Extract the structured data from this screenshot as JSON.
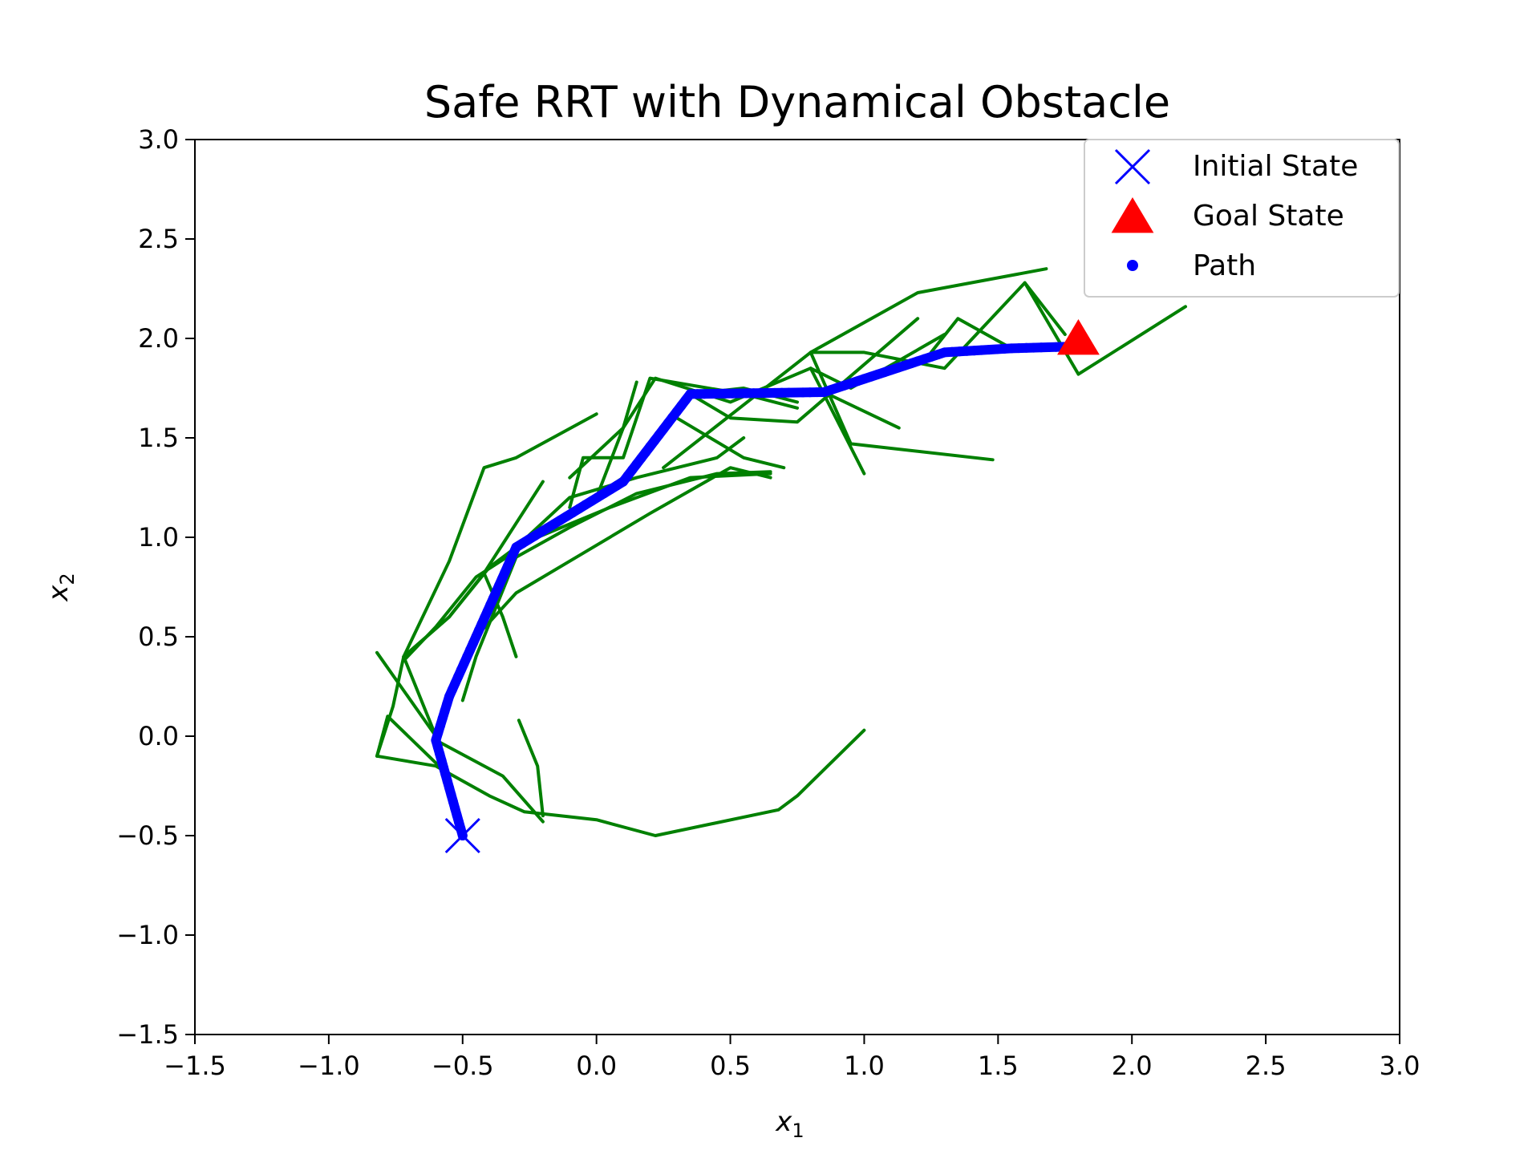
{
  "chart_data": {
    "type": "line",
    "title": "Safe RRT with Dynamical Obstacle",
    "xlabel": "x",
    "xlabel_sub": "1",
    "ylabel": "x",
    "ylabel_sub": "2",
    "xlim": [
      -1.5,
      3.0
    ],
    "ylim": [
      -1.5,
      3.0
    ],
    "xticks": [
      -1.5,
      -1.0,
      -0.5,
      0.0,
      0.5,
      1.0,
      1.5,
      2.0,
      2.5,
      3.0
    ],
    "xtick_labels": [
      "−1.5",
      "−1.0",
      "−0.5",
      "0.0",
      "0.5",
      "1.0",
      "1.5",
      "2.0",
      "2.5",
      "3.0"
    ],
    "yticks": [
      -1.5,
      -1.0,
      -0.5,
      0.0,
      0.5,
      1.0,
      1.5,
      2.0,
      2.5,
      3.0
    ],
    "ytick_labels": [
      "−1.5",
      "−1.0",
      "−0.5",
      "0.0",
      "0.5",
      "1.0",
      "1.5",
      "2.0",
      "2.5",
      "3.0"
    ],
    "grid": false,
    "legend_position": "top-right",
    "legend": [
      {
        "label": "Initial State",
        "marker": "x",
        "color": "#0000ff"
      },
      {
        "label": "Goal State",
        "marker": "triangle",
        "color": "#ff0000"
      },
      {
        "label": "Path",
        "marker": "dot",
        "color": "#0000ff"
      }
    ],
    "tree_color": "#008000",
    "path_color": "#0000ff",
    "initial_state": [
      -0.5,
      -0.5
    ],
    "goal_state": [
      1.8,
      2.0
    ],
    "tree_branches": [
      [
        [
          -0.5,
          -0.5
        ],
        [
          -0.6,
          0.0
        ],
        [
          -0.45,
          0.5
        ],
        [
          -0.3,
          0.95
        ],
        [
          0.1,
          1.3
        ],
        [
          0.35,
          1.72
        ],
        [
          0.85,
          1.73
        ],
        [
          1.3,
          1.93
        ],
        [
          1.55,
          1.95
        ],
        [
          1.8,
          1.95
        ]
      ],
      [
        [
          -0.5,
          -0.5
        ],
        [
          -0.55,
          -0.2
        ],
        [
          -0.78,
          0.1
        ],
        [
          -0.82,
          -0.1
        ]
      ],
      [
        [
          -0.82,
          -0.1
        ],
        [
          -0.76,
          0.15
        ],
        [
          -0.72,
          0.4
        ],
        [
          -0.55,
          0.6
        ],
        [
          -0.4,
          0.85
        ],
        [
          -0.2,
          1.05
        ]
      ],
      [
        [
          -0.82,
          -0.1
        ],
        [
          -0.6,
          -0.15
        ],
        [
          -0.4,
          -0.3
        ],
        [
          -0.27,
          -0.38
        ],
        [
          0.0,
          -0.42
        ],
        [
          0.22,
          -0.5
        ],
        [
          0.68,
          -0.37
        ],
        [
          0.75,
          -0.3
        ],
        [
          1.0,
          0.03
        ]
      ],
      [
        [
          -0.6,
          -0.02
        ],
        [
          -0.35,
          -0.2
        ],
        [
          -0.2,
          -0.43
        ]
      ],
      [
        [
          -0.82,
          0.42
        ],
        [
          -0.6,
          0.0
        ]
      ],
      [
        [
          -0.29,
          0.08
        ],
        [
          -0.22,
          -0.15
        ],
        [
          -0.2,
          -0.4
        ]
      ],
      [
        [
          -0.6,
          0.0
        ],
        [
          -0.72,
          0.4
        ],
        [
          -0.55,
          0.88
        ],
        [
          -0.42,
          1.35
        ],
        [
          -0.3,
          1.4
        ],
        [
          0.0,
          1.62
        ]
      ],
      [
        [
          -0.72,
          0.4
        ],
        [
          -0.55,
          0.6
        ],
        [
          -0.42,
          0.82
        ],
        [
          -0.2,
          1.28
        ]
      ],
      [
        [
          -0.72,
          0.38
        ],
        [
          -0.6,
          0.55
        ],
        [
          -0.45,
          0.8
        ],
        [
          -0.22,
          1.0
        ],
        [
          0.05,
          1.15
        ],
        [
          0.35,
          1.3
        ],
        [
          0.65,
          1.32
        ]
      ],
      [
        [
          -0.45,
          0.5
        ],
        [
          -0.3,
          0.72
        ],
        [
          -0.05,
          0.92
        ],
        [
          0.2,
          1.12
        ],
        [
          0.5,
          1.35
        ],
        [
          0.65,
          1.3
        ]
      ],
      [
        [
          -0.42,
          0.82
        ],
        [
          -0.35,
          0.6
        ],
        [
          -0.3,
          0.4
        ]
      ],
      [
        [
          -0.5,
          0.18
        ],
        [
          -0.45,
          0.4
        ],
        [
          -0.3,
          0.9
        ],
        [
          -0.1,
          1.05
        ],
        [
          0.15,
          1.22
        ],
        [
          0.45,
          1.32
        ],
        [
          0.65,
          1.33
        ]
      ],
      [
        [
          -0.3,
          0.95
        ],
        [
          -0.1,
          1.2
        ],
        [
          0.15,
          1.3
        ],
        [
          0.45,
          1.4
        ],
        [
          0.55,
          1.5
        ]
      ],
      [
        [
          -0.1,
          1.15
        ],
        [
          -0.05,
          1.4
        ],
        [
          0.1,
          1.4
        ],
        [
          0.2,
          1.8
        ],
        [
          0.55,
          1.72
        ],
        [
          0.75,
          1.65
        ]
      ],
      [
        [
          -0.1,
          1.3
        ],
        [
          0.1,
          1.55
        ],
        [
          0.15,
          1.78
        ]
      ],
      [
        [
          0.0,
          1.2
        ],
        [
          0.1,
          1.55
        ],
        [
          0.22,
          1.8
        ],
        [
          0.5,
          1.68
        ],
        [
          0.8,
          1.85
        ],
        [
          0.95,
          1.75
        ],
        [
          1.3,
          2.02
        ]
      ],
      [
        [
          0.3,
          1.6
        ],
        [
          0.55,
          1.4
        ],
        [
          0.7,
          1.35
        ]
      ],
      [
        [
          0.35,
          1.72
        ],
        [
          0.55,
          1.75
        ],
        [
          0.75,
          1.68
        ]
      ],
      [
        [
          0.35,
          1.72
        ],
        [
          0.5,
          1.6
        ],
        [
          0.75,
          1.58
        ],
        [
          1.2,
          2.1
        ]
      ],
      [
        [
          0.8,
          1.93
        ],
        [
          1.2,
          2.23
        ],
        [
          1.68,
          2.35
        ]
      ],
      [
        [
          0.25,
          1.35
        ],
        [
          0.8,
          1.93
        ],
        [
          1.0,
          1.93
        ],
        [
          1.3,
          1.85
        ],
        [
          1.6,
          2.28
        ],
        [
          1.8,
          1.82
        ],
        [
          2.2,
          2.16
        ]
      ],
      [
        [
          0.8,
          1.93
        ],
        [
          0.95,
          1.47
        ],
        [
          1.48,
          1.39
        ]
      ],
      [
        [
          0.85,
          1.73
        ],
        [
          1.13,
          1.55
        ]
      ],
      [
        [
          0.8,
          1.85
        ],
        [
          1.0,
          1.32
        ]
      ],
      [
        [
          1.25,
          1.93
        ],
        [
          1.35,
          2.1
        ],
        [
          1.55,
          1.95
        ]
      ],
      [
        [
          1.6,
          2.28
        ],
        [
          1.75,
          2.02
        ]
      ]
    ],
    "path": [
      [
        -0.5,
        -0.5
      ],
      [
        -0.6,
        -0.02
      ],
      [
        -0.55,
        0.2
      ],
      [
        -0.45,
        0.5
      ],
      [
        -0.3,
        0.95
      ],
      [
        0.1,
        1.28
      ],
      [
        0.35,
        1.72
      ],
      [
        0.85,
        1.73
      ],
      [
        1.3,
        1.93
      ],
      [
        1.55,
        1.95
      ],
      [
        1.8,
        1.96
      ]
    ]
  }
}
